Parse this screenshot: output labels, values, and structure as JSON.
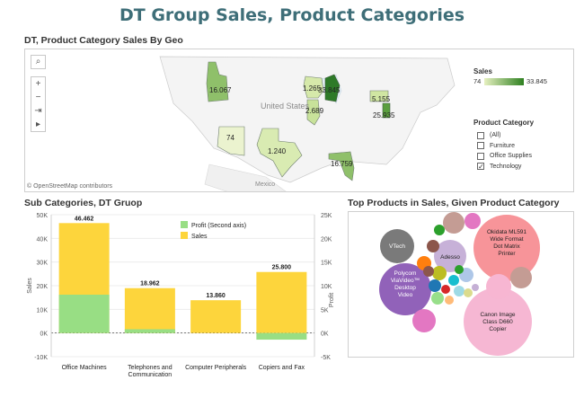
{
  "title": "DT Group Sales, Product Categories",
  "map": {
    "title": "DT, Product Category Sales By Geo",
    "credit": "© OpenStreetMap contributors",
    "places": {
      "united_states": "United States",
      "mexico": "Mexico"
    },
    "state_values": [
      "16.067",
      "74",
      "1.240",
      "1.265",
      "33.845",
      "2.689",
      "5.155",
      "25.935",
      "16.759"
    ],
    "controls": [
      "search-icon",
      "zoom-in-icon",
      "zoom-out-icon",
      "pin-icon",
      "play-icon"
    ],
    "sales_legend": {
      "title": "Sales",
      "min": "74",
      "max": "33.845",
      "low_color": "#e6f0c0",
      "high_color": "#2e8020"
    },
    "category_legend": {
      "title": "Product Category",
      "items": [
        {
          "label": "(All)",
          "checked": false
        },
        {
          "label": "Furniture",
          "checked": false
        },
        {
          "label": "Office Supplies",
          "checked": false
        },
        {
          "label": "Technology",
          "checked": true
        }
      ]
    }
  },
  "sub_categories": {
    "title": "Sub Categories, DT Gruop",
    "left_axis_label": "Sales",
    "right_axis_label": "Profit",
    "left_ticks": [
      "50K",
      "40K",
      "30K",
      "20K",
      "10K",
      "0K",
      "-10K"
    ],
    "right_ticks": [
      "25K",
      "20K",
      "15K",
      "10K",
      "5K",
      "0K",
      "-5K"
    ],
    "legend": [
      {
        "label": "Profit (Second axis)",
        "color": "#98de84"
      },
      {
        "label": "Sales",
        "color": "#fdd53c"
      }
    ]
  },
  "chart_data": {
    "type": "bar",
    "categories": [
      "Office Machines",
      "Telephones and Communication",
      "Computer Peripherals",
      "Copiers and Fax"
    ],
    "series": [
      {
        "name": "Sales",
        "values": [
          46462,
          18962,
          13860,
          25800
        ],
        "labels": [
          "46.462",
          "18.962",
          "13.860",
          "25.800"
        ]
      },
      {
        "name": "Profit (Second axis)",
        "values": [
          8100,
          800,
          0,
          -1400
        ]
      }
    ],
    "ylabel": "Sales",
    "y2label": "Profit",
    "ylim": [
      -10000,
      50000
    ],
    "y2lim": [
      -5000,
      25000
    ]
  },
  "top_products": {
    "title": "Top Products in Sales, Given Product Category",
    "bubbles": [
      {
        "label": "Okidata ML591 Wide Format Dot Matrix Printer",
        "color": "#f79499"
      },
      {
        "label": "Canon Image Class D660 Copier",
        "color": "#f6b7d3"
      },
      {
        "label": "Polycom ViaVideo™ Desktop Video",
        "color": "#9162b9"
      },
      {
        "label": "Adesso",
        "color": "#c7b1d8"
      },
      {
        "label": "VTech",
        "color": "#7a7a7a"
      }
    ],
    "minor_colors": [
      "#c49c94",
      "#e377c2",
      "#2ca02c",
      "#8c564b",
      "#ff7f0e",
      "#bcbd22",
      "#1f77b4",
      "#d62728",
      "#17becf",
      "#aec7e8",
      "#98df8a",
      "#ffbb78",
      "#9edae5",
      "#dbdb8d",
      "#c5b0d5",
      "#f7b6d2"
    ]
  }
}
